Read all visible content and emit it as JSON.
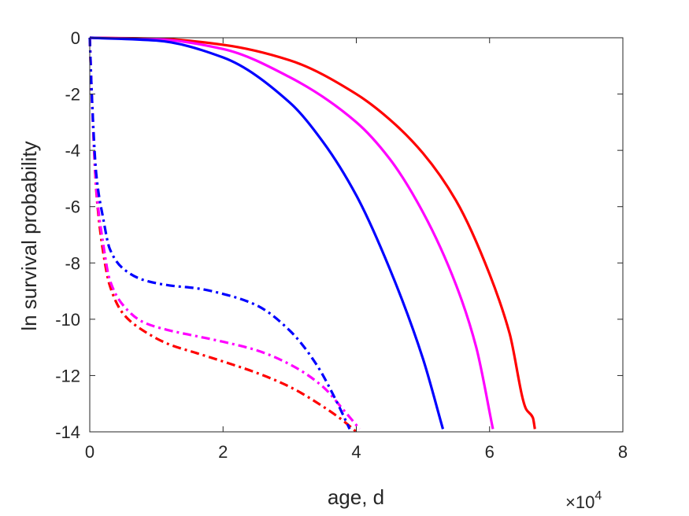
{
  "chart_data": {
    "type": "line",
    "xlabel": "age, d",
    "ylabel": "ln survival probability",
    "xlim": [
      0,
      80000
    ],
    "ylim": [
      -14,
      0
    ],
    "x_ticks": [
      0,
      20000,
      40000,
      60000,
      80000
    ],
    "x_tick_labels": [
      "0",
      "2",
      "4",
      "6",
      "8"
    ],
    "y_ticks": [
      0,
      -2,
      -4,
      -6,
      -8,
      -10,
      -12,
      -14
    ],
    "y_tick_labels": [
      "0",
      "-2",
      "-4",
      "-6",
      "-8",
      "-10",
      "-12",
      "-14"
    ],
    "x_exponent": {
      "base": "×10",
      "power": "4"
    },
    "grid": false,
    "series": [
      {
        "color": "#ff0000",
        "style": "solid",
        "x": [
          0,
          10000,
          20000,
          30000,
          40000,
          45000,
          50000,
          55000,
          60000,
          63000,
          65500,
          66500,
          66800
        ],
        "y": [
          0,
          -0.03,
          -0.25,
          -0.8,
          -2.0,
          -2.9,
          -4.1,
          -5.8,
          -8.4,
          -10.5,
          -13.2,
          -13.5,
          -13.9
        ]
      },
      {
        "color": "#ff00ff",
        "style": "solid",
        "x": [
          0,
          10000,
          20000,
          30000,
          40000,
          45000,
          50000,
          55000,
          58000,
          60500
        ],
        "y": [
          0,
          -0.05,
          -0.4,
          -1.4,
          -3.0,
          -4.3,
          -6.2,
          -8.8,
          -11.0,
          -13.9
        ]
      },
      {
        "color": "#0000ff",
        "style": "solid",
        "x": [
          0,
          10000,
          20000,
          30000,
          35000,
          40000,
          45000,
          50000,
          53000
        ],
        "y": [
          0,
          -0.1,
          -0.7,
          -2.3,
          -3.7,
          -5.6,
          -8.2,
          -11.4,
          -13.9
        ]
      },
      {
        "color": "#ff0000",
        "style": "dashdot",
        "x": [
          0,
          300,
          1000,
          2000,
          3000,
          5000,
          8000,
          12000,
          16000,
          20000,
          25000,
          30000,
          35000,
          38000,
          40000
        ],
        "y": [
          0,
          -2.0,
          -5.5,
          -7.6,
          -8.8,
          -9.8,
          -10.4,
          -10.9,
          -11.2,
          -11.5,
          -11.9,
          -12.4,
          -13.1,
          -13.6,
          -14.0
        ]
      },
      {
        "color": "#ff00ff",
        "style": "dashdot",
        "x": [
          0,
          300,
          1000,
          2000,
          3000,
          5000,
          8000,
          12000,
          16000,
          20000,
          25000,
          30000,
          35000,
          38000,
          40500
        ],
        "y": [
          0,
          -2.0,
          -5.4,
          -7.3,
          -8.6,
          -9.5,
          -10.1,
          -10.4,
          -10.6,
          -10.8,
          -11.1,
          -11.6,
          -12.4,
          -13.2,
          -13.9
        ]
      },
      {
        "color": "#0000ff",
        "style": "dashdot",
        "x": [
          0,
          300,
          1000,
          2000,
          3000,
          5000,
          8000,
          12000,
          16000,
          20000,
          25000,
          30000,
          34000,
          37000,
          39000
        ],
        "y": [
          0,
          -2.0,
          -4.9,
          -6.4,
          -7.5,
          -8.2,
          -8.6,
          -8.8,
          -8.9,
          -9.1,
          -9.5,
          -10.4,
          -11.6,
          -12.9,
          -13.9
        ]
      }
    ]
  }
}
